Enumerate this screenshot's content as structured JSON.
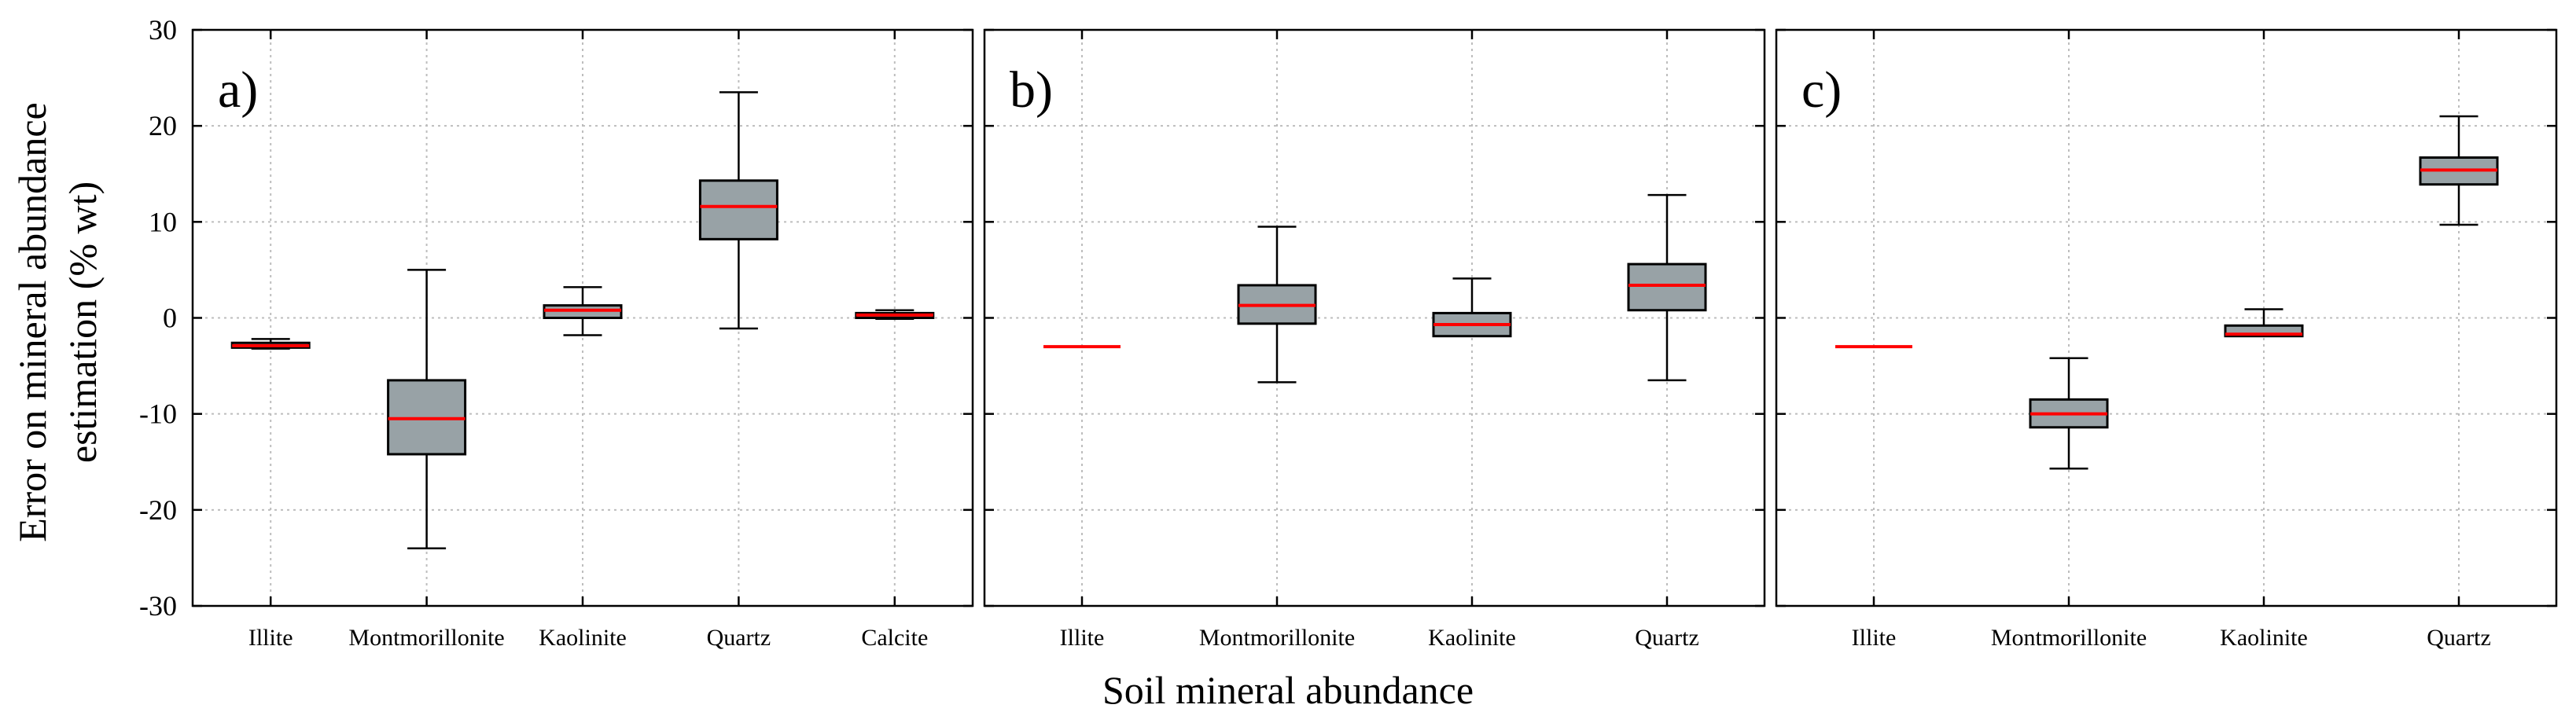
{
  "colors": {
    "box_fill": "#98a2a6",
    "median": "#ff0000",
    "frame": "#000000",
    "grid": "#bdbdbd"
  },
  "xlabel": "Soil mineral abundance",
  "ylabel_line1": "Error on mineral abundance",
  "ylabel_line2": "estimation (% wt)",
  "chart_data": [
    {
      "type": "box",
      "panel_label": "a)",
      "ylim": [
        -30,
        30
      ],
      "yticks": [
        -30,
        -20,
        -10,
        0,
        10,
        20,
        30
      ],
      "grid": true,
      "categories": [
        "Illite",
        "Montmorillonite",
        "Kaolinite",
        "Quartz",
        "Calcite"
      ],
      "boxes": [
        {
          "whislo": -3.2,
          "q1": -3.1,
          "med": -2.9,
          "q3": -2.6,
          "whishi": -2.2
        },
        {
          "whislo": -24.0,
          "q1": -14.2,
          "med": -10.5,
          "q3": -6.5,
          "whishi": 5.0
        },
        {
          "whislo": -1.8,
          "q1": 0.0,
          "med": 0.8,
          "q3": 1.3,
          "whishi": 3.2
        },
        {
          "whislo": -1.1,
          "q1": 8.2,
          "med": 11.6,
          "q3": 14.3,
          "whishi": 23.5
        },
        {
          "whislo": -0.1,
          "q1": 0.0,
          "med": 0.3,
          "q3": 0.5,
          "whishi": 0.8
        }
      ]
    },
    {
      "type": "box",
      "panel_label": "b)",
      "ylim": [
        -30,
        30
      ],
      "yticks": [
        -30,
        -20,
        -10,
        0,
        10,
        20,
        30
      ],
      "grid": true,
      "categories": [
        "Illite",
        "Montmorillonite",
        "Kaolinite",
        "Quartz"
      ],
      "boxes": [
        {
          "whislo": -3.0,
          "q1": -3.0,
          "med": -3.0,
          "q3": -3.0,
          "whishi": -3.0
        },
        {
          "whislo": -6.7,
          "q1": -0.6,
          "med": 1.3,
          "q3": 3.4,
          "whishi": 9.5
        },
        {
          "whislo": -1.9,
          "q1": -1.9,
          "med": -0.7,
          "q3": 0.5,
          "whishi": 4.1
        },
        {
          "whislo": -6.5,
          "q1": 0.8,
          "med": 3.4,
          "q3": 5.6,
          "whishi": 12.8
        }
      ]
    },
    {
      "type": "box",
      "panel_label": "c)",
      "ylim": [
        -30,
        30
      ],
      "yticks": [
        -30,
        -20,
        -10,
        0,
        10,
        20,
        30
      ],
      "grid": true,
      "categories": [
        "Illite",
        "Montmorillonite",
        "Kaolinite",
        "Quartz"
      ],
      "boxes": [
        {
          "whislo": -3.0,
          "q1": -3.0,
          "med": -3.0,
          "q3": -3.0,
          "whishi": -3.0
        },
        {
          "whislo": -15.7,
          "q1": -11.4,
          "med": -10.0,
          "q3": -8.5,
          "whishi": -4.2
        },
        {
          "whislo": -1.9,
          "q1": -1.9,
          "med": -1.7,
          "q3": -0.8,
          "whishi": 0.9
        },
        {
          "whislo": 9.7,
          "q1": 13.9,
          "med": 15.4,
          "q3": 16.7,
          "whishi": 21.0
        }
      ]
    }
  ]
}
